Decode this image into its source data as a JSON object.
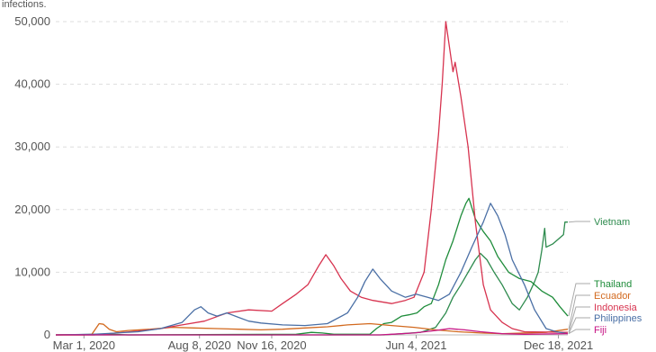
{
  "chart_data": {
    "type": "line",
    "subtitle": "infections.",
    "x_ticks": [
      "Mar 1, 2020",
      "Aug 8, 2020",
      "Nov 16, 2020",
      "Jun 4, 2021",
      "Dec 18, 2021"
    ],
    "y_ticks": [
      "0",
      "10,000",
      "20,000",
      "30,000",
      "40,000",
      "50,000"
    ],
    "ylim": [
      0,
      50000
    ],
    "xlim": [
      "2020-01-22",
      "2021-12-31"
    ],
    "grid": true,
    "legend": "right, labels at line ends",
    "series": [
      {
        "name": "Vietnam",
        "color": "#2e8b4e",
        "points": [
          [
            "2020-01-22",
            0
          ],
          [
            "2021-04-20",
            0
          ],
          [
            "2021-05-15",
            200
          ],
          [
            "2021-06-10",
            400
          ],
          [
            "2021-07-01",
            1200
          ],
          [
            "2021-07-15",
            3500
          ],
          [
            "2021-07-25",
            6000
          ],
          [
            "2021-08-05",
            8000
          ],
          [
            "2021-08-15",
            10000
          ],
          [
            "2021-08-25",
            12000
          ],
          [
            "2021-09-01",
            13000
          ],
          [
            "2021-09-10",
            12000
          ],
          [
            "2021-09-20",
            10000
          ],
          [
            "2021-10-01",
            8000
          ],
          [
            "2021-10-15",
            5000
          ],
          [
            "2021-10-25",
            4000
          ],
          [
            "2021-11-05",
            6000
          ],
          [
            "2021-11-15",
            8500
          ],
          [
            "2021-11-20",
            10000
          ],
          [
            "2021-11-25",
            13500
          ],
          [
            "2021-11-29",
            17000
          ],
          [
            "2021-12-01",
            14000
          ],
          [
            "2021-12-10",
            14500
          ],
          [
            "2021-12-20",
            15500
          ],
          [
            "2021-12-25",
            16000
          ],
          [
            "2021-12-27",
            18000
          ],
          [
            "2021-12-31",
            18000
          ]
        ]
      },
      {
        "name": "Thailand",
        "color": "#1e8c3a",
        "points": [
          [
            "2020-01-22",
            0
          ],
          [
            "2020-03-25",
            100
          ],
          [
            "2020-04-10",
            100
          ],
          [
            "2020-05-01",
            0
          ],
          [
            "2020-12-20",
            100
          ],
          [
            "2021-01-10",
            400
          ],
          [
            "2021-01-25",
            300
          ],
          [
            "2021-02-10",
            100
          ],
          [
            "2021-04-01",
            100
          ],
          [
            "2021-04-10",
            1000
          ],
          [
            "2021-04-20",
            1800
          ],
          [
            "2021-05-01",
            2000
          ],
          [
            "2021-05-15",
            3000
          ],
          [
            "2021-05-25",
            3200
          ],
          [
            "2021-06-05",
            3500
          ],
          [
            "2021-06-15",
            4500
          ],
          [
            "2021-06-25",
            5000
          ],
          [
            "2021-07-05",
            8000
          ],
          [
            "2021-07-15",
            12000
          ],
          [
            "2021-07-25",
            15000
          ],
          [
            "2021-08-05",
            19000
          ],
          [
            "2021-08-12",
            21000
          ],
          [
            "2021-08-16",
            21800
          ],
          [
            "2021-08-25",
            18500
          ],
          [
            "2021-09-05",
            16500
          ],
          [
            "2021-09-15",
            15000
          ],
          [
            "2021-09-25",
            12500
          ],
          [
            "2021-10-10",
            10000
          ],
          [
            "2021-10-25",
            9000
          ],
          [
            "2021-11-10",
            8500
          ],
          [
            "2021-11-25",
            7000
          ],
          [
            "2021-12-10",
            6000
          ],
          [
            "2021-12-20",
            4500
          ],
          [
            "2021-12-31",
            3000
          ]
        ]
      },
      {
        "name": "Ecuador",
        "color": "#d2691e",
        "points": [
          [
            "2020-01-22",
            0
          ],
          [
            "2020-03-01",
            0
          ],
          [
            "2020-03-12",
            100
          ],
          [
            "2020-03-22",
            1800
          ],
          [
            "2020-03-28",
            1700
          ],
          [
            "2020-04-05",
            900
          ],
          [
            "2020-04-15",
            500
          ],
          [
            "2020-05-01",
            700
          ],
          [
            "2020-06-01",
            900
          ],
          [
            "2020-07-01",
            1200
          ],
          [
            "2020-08-01",
            1100
          ],
          [
            "2020-09-01",
            1000
          ],
          [
            "2020-10-01",
            900
          ],
          [
            "2020-11-01",
            800
          ],
          [
            "2020-12-01",
            900
          ],
          [
            "2021-01-01",
            1100
          ],
          [
            "2021-02-01",
            1300
          ],
          [
            "2021-03-01",
            1600
          ],
          [
            "2021-04-01",
            1800
          ],
          [
            "2021-05-01",
            1500
          ],
          [
            "2021-06-01",
            1200
          ],
          [
            "2021-07-01",
            800
          ],
          [
            "2021-08-01",
            500
          ],
          [
            "2021-09-01",
            300
          ],
          [
            "2021-10-01",
            200
          ],
          [
            "2021-11-01",
            300
          ],
          [
            "2021-12-01",
            400
          ],
          [
            "2021-12-31",
            900
          ]
        ]
      },
      {
        "name": "Indonesia",
        "color": "#d7334f",
        "points": [
          [
            "2020-01-22",
            0
          ],
          [
            "2020-03-15",
            0
          ],
          [
            "2020-04-15",
            300
          ],
          [
            "2020-05-15",
            600
          ],
          [
            "2020-06-15",
            1000
          ],
          [
            "2020-07-15",
            1600
          ],
          [
            "2020-08-15",
            2200
          ],
          [
            "2020-09-15",
            3500
          ],
          [
            "2020-10-15",
            4000
          ],
          [
            "2020-11-16",
            3800
          ],
          [
            "2020-12-01",
            5000
          ],
          [
            "2020-12-20",
            6500
          ],
          [
            "2021-01-05",
            8000
          ],
          [
            "2021-01-20",
            11000
          ],
          [
            "2021-01-30",
            12800
          ],
          [
            "2021-02-10",
            11000
          ],
          [
            "2021-02-20",
            9000
          ],
          [
            "2021-03-05",
            7000
          ],
          [
            "2021-03-20",
            6000
          ],
          [
            "2021-04-05",
            5500
          ],
          [
            "2021-05-01",
            5000
          ],
          [
            "2021-05-20",
            5500
          ],
          [
            "2021-06-01",
            6000
          ],
          [
            "2021-06-15",
            10000
          ],
          [
            "2021-06-25",
            20000
          ],
          [
            "2021-07-05",
            32000
          ],
          [
            "2021-07-10",
            40000
          ],
          [
            "2021-07-15",
            50000
          ],
          [
            "2021-07-20",
            46000
          ],
          [
            "2021-07-25",
            42000
          ],
          [
            "2021-07-28",
            43500
          ],
          [
            "2021-08-05",
            38000
          ],
          [
            "2021-08-15",
            30000
          ],
          [
            "2021-08-25",
            18000
          ],
          [
            "2021-09-05",
            8000
          ],
          [
            "2021-09-15",
            4000
          ],
          [
            "2021-10-01",
            2000
          ],
          [
            "2021-10-15",
            1000
          ],
          [
            "2021-11-01",
            500
          ],
          [
            "2021-12-31",
            400
          ]
        ]
      },
      {
        "name": "Philippines",
        "color": "#4a6fa5",
        "points": [
          [
            "2020-01-22",
            0
          ],
          [
            "2020-03-15",
            100
          ],
          [
            "2020-04-15",
            300
          ],
          [
            "2020-05-15",
            500
          ],
          [
            "2020-06-15",
            1000
          ],
          [
            "2020-07-15",
            2000
          ],
          [
            "2020-08-01",
            4000
          ],
          [
            "2020-08-10",
            4500
          ],
          [
            "2020-08-20",
            3500
          ],
          [
            "2020-09-01",
            3000
          ],
          [
            "2020-09-15",
            3500
          ],
          [
            "2020-10-01",
            2800
          ],
          [
            "2020-10-15",
            2200
          ],
          [
            "2020-11-01",
            1900
          ],
          [
            "2020-12-01",
            1600
          ],
          [
            "2021-01-01",
            1500
          ],
          [
            "2021-02-01",
            1800
          ],
          [
            "2021-03-01",
            3500
          ],
          [
            "2021-03-15",
            6000
          ],
          [
            "2021-03-25",
            8500
          ],
          [
            "2021-04-05",
            10500
          ],
          [
            "2021-04-15",
            9000
          ],
          [
            "2021-05-01",
            7000
          ],
          [
            "2021-05-20",
            6000
          ],
          [
            "2021-06-04",
            6500
          ],
          [
            "2021-06-20",
            6000
          ],
          [
            "2021-07-05",
            5500
          ],
          [
            "2021-07-20",
            6500
          ],
          [
            "2021-08-05",
            10000
          ],
          [
            "2021-08-20",
            14000
          ],
          [
            "2021-09-05",
            18000
          ],
          [
            "2021-09-15",
            21000
          ],
          [
            "2021-09-25",
            19000
          ],
          [
            "2021-10-05",
            16000
          ],
          [
            "2021-10-15",
            12000
          ],
          [
            "2021-11-01",
            8000
          ],
          [
            "2021-11-15",
            4000
          ],
          [
            "2021-12-01",
            1000
          ],
          [
            "2021-12-15",
            500
          ],
          [
            "2021-12-31",
            200
          ]
        ]
      },
      {
        "name": "Fiji",
        "color": "#c71585",
        "points": [
          [
            "2020-01-22",
            0
          ],
          [
            "2021-04-15",
            0
          ],
          [
            "2021-05-01",
            100
          ],
          [
            "2021-06-01",
            300
          ],
          [
            "2021-07-01",
            700
          ],
          [
            "2021-07-20",
            1000
          ],
          [
            "2021-08-10",
            800
          ],
          [
            "2021-09-01",
            500
          ],
          [
            "2021-10-01",
            200
          ],
          [
            "2021-11-01",
            100
          ],
          [
            "2021-12-31",
            200
          ]
        ]
      }
    ]
  }
}
